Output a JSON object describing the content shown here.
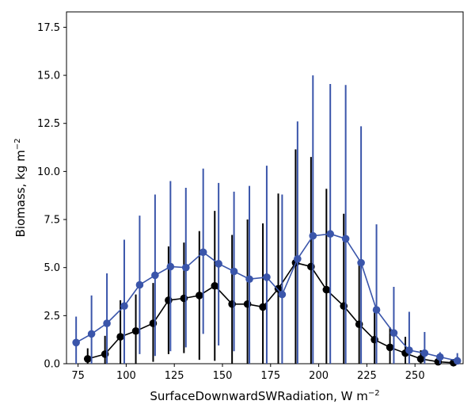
{
  "chart_data": {
    "type": "line",
    "xlabel": "SurfaceDownwardSWRadiation,  W m",
    "xlabel_sup": "−2",
    "ylabel": "Biomass,  kg m",
    "ylabel_sup": "−2",
    "xlim": [
      69,
      275
    ],
    "ylim": [
      0,
      18.3
    ],
    "xticks": [
      75,
      100,
      125,
      150,
      175,
      200,
      225,
      250
    ],
    "xtick_labels": [
      "75",
      "100",
      "125",
      "150",
      "175",
      "200",
      "225",
      "250"
    ],
    "yticks": [
      0,
      2.5,
      5,
      7.5,
      10,
      12.5,
      15,
      17.5
    ],
    "ytick_labels": [
      "0.0",
      "2.5",
      "5.0",
      "7.5",
      "10.0",
      "12.5",
      "15.0",
      "17.5"
    ],
    "grid": false,
    "legend": "none",
    "series": [
      {
        "color": "#000000",
        "marker": "circle",
        "points": [
          {
            "x": 80,
            "y": 0.25,
            "lo": 0.0,
            "hi": 0.8
          },
          {
            "x": 89,
            "y": 0.5,
            "lo": 0.0,
            "hi": 1.45
          },
          {
            "x": 97,
            "y": 1.4,
            "lo": 0.0,
            "hi": 3.3
          },
          {
            "x": 105,
            "y": 1.7,
            "lo": 0.0,
            "hi": 3.6
          },
          {
            "x": 114,
            "y": 2.1,
            "lo": 0.1,
            "hi": 4.2
          },
          {
            "x": 122,
            "y": 3.3,
            "lo": 0.5,
            "hi": 6.1
          },
          {
            "x": 130,
            "y": 3.4,
            "lo": 0.55,
            "hi": 6.3
          },
          {
            "x": 138,
            "y": 3.55,
            "lo": 0.2,
            "hi": 6.9
          },
          {
            "x": 146,
            "y": 4.05,
            "lo": 0.15,
            "hi": 7.95
          },
          {
            "x": 155,
            "y": 3.1,
            "lo": 0.0,
            "hi": 6.7
          },
          {
            "x": 163,
            "y": 3.1,
            "lo": 0.0,
            "hi": 7.5
          },
          {
            "x": 171,
            "y": 2.95,
            "lo": 0.0,
            "hi": 7.3
          },
          {
            "x": 179,
            "y": 3.9,
            "lo": 0.0,
            "hi": 8.85
          },
          {
            "x": 188,
            "y": 5.25,
            "lo": 0.0,
            "hi": 11.15
          },
          {
            "x": 196,
            "y": 5.05,
            "lo": 0.0,
            "hi": 10.75
          },
          {
            "x": 204,
            "y": 3.85,
            "lo": 0.0,
            "hi": 9.1
          },
          {
            "x": 213,
            "y": 3.0,
            "lo": 0.0,
            "hi": 7.8
          },
          {
            "x": 221,
            "y": 2.05,
            "lo": 0.0,
            "hi": 5.3
          },
          {
            "x": 229,
            "y": 1.25,
            "lo": 0.0,
            "hi": 2.95
          },
          {
            "x": 237,
            "y": 0.85,
            "lo": 0.0,
            "hi": 1.9
          },
          {
            "x": 245,
            "y": 0.55,
            "lo": 0.0,
            "hi": 1.4
          },
          {
            "x": 253,
            "y": 0.25,
            "lo": 0.0,
            "hi": 0.7
          },
          {
            "x": 262,
            "y": 0.1,
            "lo": 0.0,
            "hi": 0.35
          },
          {
            "x": 270,
            "y": 0.05,
            "lo": 0.0,
            "hi": 0.15
          }
        ]
      },
      {
        "color": "#3a55aa",
        "marker": "circle",
        "points": [
          {
            "x": 74,
            "y": 1.1,
            "lo": 0.0,
            "hi": 2.45
          },
          {
            "x": 82,
            "y": 1.55,
            "lo": 0.0,
            "hi": 3.55
          },
          {
            "x": 90,
            "y": 2.1,
            "lo": 0.0,
            "hi": 4.7
          },
          {
            "x": 99,
            "y": 3.0,
            "lo": 0.0,
            "hi": 6.45
          },
          {
            "x": 107,
            "y": 4.1,
            "lo": 0.5,
            "hi": 7.7
          },
          {
            "x": 115,
            "y": 4.6,
            "lo": 0.4,
            "hi": 8.8
          },
          {
            "x": 123,
            "y": 5.05,
            "lo": 0.65,
            "hi": 9.5
          },
          {
            "x": 131,
            "y": 5.0,
            "lo": 0.85,
            "hi": 9.15
          },
          {
            "x": 140,
            "y": 5.8,
            "lo": 1.55,
            "hi": 10.15
          },
          {
            "x": 148,
            "y": 5.2,
            "lo": 0.95,
            "hi": 9.4
          },
          {
            "x": 156,
            "y": 4.8,
            "lo": 0.65,
            "hi": 8.95
          },
          {
            "x": 164,
            "y": 4.4,
            "lo": 0.0,
            "hi": 9.25
          },
          {
            "x": 173,
            "y": 4.5,
            "lo": 0.0,
            "hi": 10.3
          },
          {
            "x": 181,
            "y": 3.6,
            "lo": 0.0,
            "hi": 8.8
          },
          {
            "x": 189,
            "y": 5.45,
            "lo": 0.0,
            "hi": 12.6
          },
          {
            "x": 197,
            "y": 6.65,
            "lo": 0.0,
            "hi": 15.0
          },
          {
            "x": 206,
            "y": 6.75,
            "lo": 0.0,
            "hi": 14.55
          },
          {
            "x": 214,
            "y": 6.5,
            "lo": 0.0,
            "hi": 14.5
          },
          {
            "x": 222,
            "y": 5.25,
            "lo": 0.0,
            "hi": 12.35
          },
          {
            "x": 230,
            "y": 2.8,
            "lo": 0.0,
            "hi": 7.25
          },
          {
            "x": 239,
            "y": 1.6,
            "lo": 0.0,
            "hi": 4.0
          },
          {
            "x": 247,
            "y": 0.7,
            "lo": 0.0,
            "hi": 2.7
          },
          {
            "x": 255,
            "y": 0.55,
            "lo": 0.0,
            "hi": 1.65
          },
          {
            "x": 263,
            "y": 0.35,
            "lo": 0.0,
            "hi": 0.6
          },
          {
            "x": 272,
            "y": 0.15,
            "lo": 0.0,
            "hi": 0.55
          }
        ]
      }
    ]
  }
}
